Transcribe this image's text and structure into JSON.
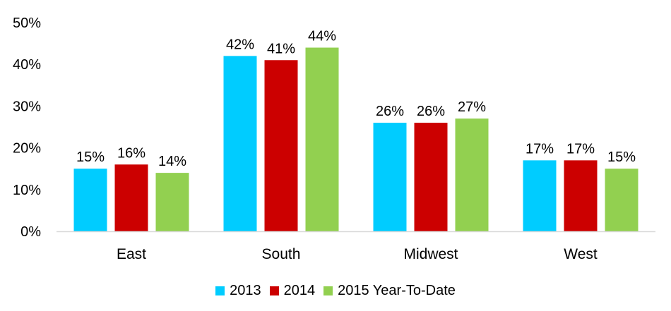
{
  "chart_data": {
    "type": "bar",
    "categories": [
      "East",
      "South",
      "Midwest",
      "West"
    ],
    "series": [
      {
        "name": "2013",
        "color": "#00CCFF",
        "values": [
          15,
          42,
          26,
          17
        ],
        "labels": [
          "15%",
          "42%",
          "26%",
          "17%"
        ]
      },
      {
        "name": "2014",
        "color": "#CC0000",
        "values": [
          16,
          41,
          26,
          17
        ],
        "labels": [
          "16%",
          "41%",
          "26%",
          "17%"
        ]
      },
      {
        "name": "2015 Year-To-Date",
        "color": "#92D050",
        "values": [
          14,
          44,
          27,
          15
        ],
        "labels": [
          "14%",
          "44%",
          "27%",
          "15%"
        ]
      }
    ],
    "ylim": [
      0,
      50
    ],
    "yticks": [
      0,
      10,
      20,
      30,
      40,
      50
    ],
    "ytick_labels": [
      "0%",
      "10%",
      "20%",
      "30%",
      "40%",
      "50%"
    ],
    "grid": false,
    "legend_position": "bottom-center",
    "title": "",
    "xlabel": "",
    "ylabel": ""
  }
}
